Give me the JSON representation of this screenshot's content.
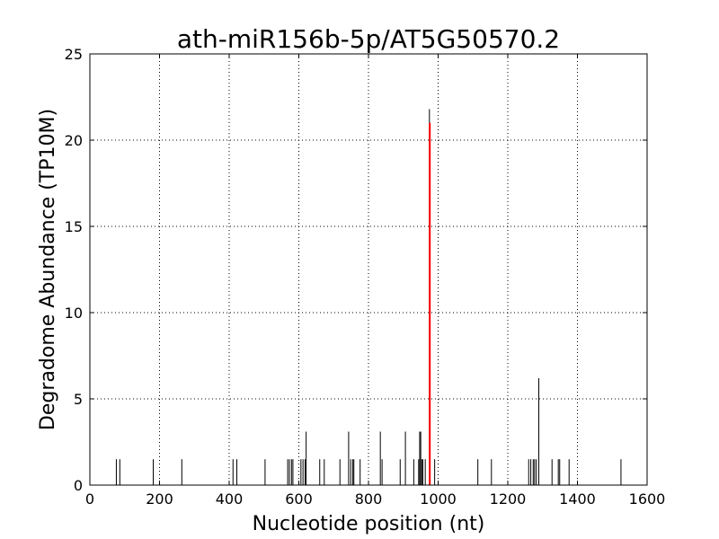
{
  "chart_data": {
    "type": "bar",
    "title": "ath-miR156b-5p/AT5G50570.2",
    "xlabel": "Nucleotide position (nt)",
    "ylabel": "Degradome Abundance (TP10M)",
    "xlim": [
      0,
      1600
    ],
    "ylim": [
      0,
      25
    ],
    "x_ticks": [
      "0",
      "200",
      "400",
      "600",
      "800",
      "1000",
      "1200",
      "1400",
      "1600"
    ],
    "y_ticks": [
      "0",
      "5",
      "10",
      "15",
      "20",
      "25"
    ],
    "grid": true,
    "colors": {
      "background_series": "#000000",
      "target_site": "#ff0000"
    },
    "series": [
      {
        "role": "all-positions",
        "color": "#000000",
        "points": [
          {
            "x": 76,
            "y": 1.5
          },
          {
            "x": 86,
            "y": 1.5
          },
          {
            "x": 182,
            "y": 1.5
          },
          {
            "x": 264,
            "y": 1.5
          },
          {
            "x": 411,
            "y": 1.5
          },
          {
            "x": 422,
            "y": 1.5
          },
          {
            "x": 503,
            "y": 1.5
          },
          {
            "x": 568,
            "y": 1.5
          },
          {
            "x": 573,
            "y": 1.5
          },
          {
            "x": 579,
            "y": 1.5
          },
          {
            "x": 583,
            "y": 1.5
          },
          {
            "x": 606,
            "y": 1.5
          },
          {
            "x": 612,
            "y": 1.5
          },
          {
            "x": 618,
            "y": 1.5
          },
          {
            "x": 621,
            "y": 3.1
          },
          {
            "x": 660,
            "y": 1.5
          },
          {
            "x": 673,
            "y": 1.5
          },
          {
            "x": 718,
            "y": 1.5
          },
          {
            "x": 743,
            "y": 3.1
          },
          {
            "x": 749,
            "y": 1.5
          },
          {
            "x": 755,
            "y": 1.5
          },
          {
            "x": 758,
            "y": 1.5
          },
          {
            "x": 776,
            "y": 1.5
          },
          {
            "x": 834,
            "y": 3.1
          },
          {
            "x": 839,
            "y": 1.5
          },
          {
            "x": 891,
            "y": 1.5
          },
          {
            "x": 906,
            "y": 3.1
          },
          {
            "x": 930,
            "y": 1.5
          },
          {
            "x": 944,
            "y": 1.5
          },
          {
            "x": 947,
            "y": 3.1
          },
          {
            "x": 950,
            "y": 3.1
          },
          {
            "x": 953,
            "y": 1.5
          },
          {
            "x": 956,
            "y": 1.5
          },
          {
            "x": 963,
            "y": 1.5
          },
          {
            "x": 975,
            "y": 21.8
          },
          {
            "x": 990,
            "y": 1.5
          },
          {
            "x": 1114,
            "y": 1.5
          },
          {
            "x": 1153,
            "y": 1.5
          },
          {
            "x": 1260,
            "y": 1.5
          },
          {
            "x": 1266,
            "y": 1.5
          },
          {
            "x": 1273,
            "y": 1.5
          },
          {
            "x": 1277,
            "y": 1.5
          },
          {
            "x": 1282,
            "y": 1.5
          },
          {
            "x": 1289,
            "y": 6.2
          },
          {
            "x": 1327,
            "y": 1.5
          },
          {
            "x": 1345,
            "y": 1.5
          },
          {
            "x": 1349,
            "y": 1.5
          },
          {
            "x": 1376,
            "y": 1.5
          },
          {
            "x": 1525,
            "y": 1.5
          }
        ]
      },
      {
        "role": "target-site",
        "color": "#ff0000",
        "points": [
          {
            "x": 976,
            "y": 21.0
          }
        ]
      }
    ]
  }
}
